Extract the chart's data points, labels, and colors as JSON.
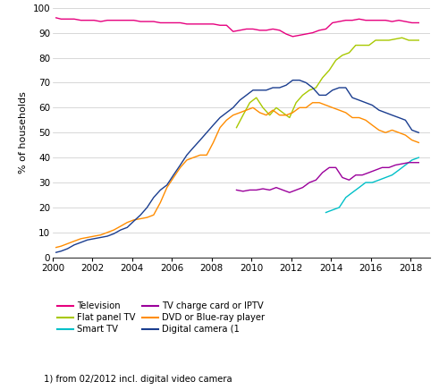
{
  "ylabel": "% of households",
  "footnote": "1) from 02/2012 incl. digital video camera",
  "ylim": [
    0,
    100
  ],
  "xlim": [
    2000,
    2019.0
  ],
  "xticks": [
    2000,
    2002,
    2004,
    2006,
    2008,
    2010,
    2012,
    2014,
    2016,
    2018
  ],
  "yticks": [
    0,
    10,
    20,
    30,
    40,
    50,
    60,
    70,
    80,
    90,
    100
  ],
  "colors": {
    "Television": "#e6007e",
    "Flat panel TV": "#a8c800",
    "Smart TV": "#00c0c8",
    "TV charge card or IPTV": "#9b009b",
    "DVD or Blue-ray player": "#ff8c00",
    "Digital camera (1": "#1a3d8f"
  },
  "legend_order": [
    "Television",
    "Flat panel TV",
    "Smart TV",
    "TV charge card or IPTV",
    "DVD or Blue-ray player",
    "Digital camera (1"
  ],
  "series": {
    "Television": {
      "x": [
        2000.17,
        2000.42,
        2000.75,
        2001.08,
        2001.42,
        2001.75,
        2002.08,
        2002.42,
        2002.75,
        2003.08,
        2003.42,
        2003.75,
        2004.08,
        2004.42,
        2004.75,
        2005.08,
        2005.42,
        2005.75,
        2006.08,
        2006.42,
        2006.75,
        2007.08,
        2007.42,
        2007.75,
        2008.08,
        2008.42,
        2008.75,
        2009.08,
        2009.42,
        2009.75,
        2010.08,
        2010.42,
        2010.75,
        2011.08,
        2011.42,
        2011.75,
        2012.08,
        2012.42,
        2012.75,
        2013.08,
        2013.42,
        2013.75,
        2014.08,
        2014.42,
        2014.75,
        2015.08,
        2015.42,
        2015.75,
        2016.08,
        2016.42,
        2016.75,
        2017.08,
        2017.42,
        2017.75,
        2018.08,
        2018.42
      ],
      "y": [
        96,
        95.5,
        95.5,
        95.5,
        95,
        95,
        95,
        94.5,
        95,
        95,
        95,
        95,
        95,
        94.5,
        94.5,
        94.5,
        94,
        94,
        94,
        94,
        93.5,
        93.5,
        93.5,
        93.5,
        93.5,
        93,
        93,
        90.5,
        91,
        91.5,
        91.5,
        91,
        91,
        91.5,
        91,
        89.5,
        88.5,
        89,
        89.5,
        90,
        91,
        91.5,
        94,
        94.5,
        95,
        95,
        95.5,
        95,
        95,
        95,
        95,
        94.5,
        95,
        94.5,
        94,
        94
      ]
    },
    "Flat panel TV": {
      "x": [
        2009.25,
        2009.58,
        2009.92,
        2010.25,
        2010.58,
        2010.92,
        2011.25,
        2011.58,
        2011.92,
        2012.25,
        2012.58,
        2012.92,
        2013.25,
        2013.58,
        2013.92,
        2014.25,
        2014.58,
        2014.92,
        2015.25,
        2015.58,
        2015.92,
        2016.25,
        2016.58,
        2016.92,
        2017.25,
        2017.58,
        2017.92,
        2018.25,
        2018.42
      ],
      "y": [
        52,
        57,
        62,
        64,
        60,
        57,
        60,
        58,
        56,
        62,
        65,
        67,
        68,
        72,
        75,
        79,
        81,
        82,
        85,
        85,
        85,
        87,
        87,
        87,
        87.5,
        88,
        87,
        87,
        87
      ]
    },
    "Smart TV": {
      "x": [
        2013.75,
        2014.08,
        2014.42,
        2014.75,
        2015.08,
        2015.42,
        2015.75,
        2016.08,
        2016.42,
        2016.75,
        2017.08,
        2017.42,
        2017.75,
        2018.08,
        2018.42
      ],
      "y": [
        18,
        19,
        20,
        24,
        26,
        28,
        30,
        30,
        31,
        32,
        33,
        35,
        37,
        39,
        40
      ]
    },
    "TV charge card or IPTV": {
      "x": [
        2009.25,
        2009.58,
        2009.92,
        2010.25,
        2010.58,
        2010.92,
        2011.25,
        2011.58,
        2011.92,
        2012.25,
        2012.58,
        2012.92,
        2013.25,
        2013.58,
        2013.92,
        2014.25,
        2014.58,
        2014.92,
        2015.25,
        2015.58,
        2015.92,
        2016.25,
        2016.58,
        2016.92,
        2017.25,
        2017.58,
        2017.92,
        2018.25,
        2018.42
      ],
      "y": [
        27,
        26.5,
        27,
        27,
        27.5,
        27,
        28,
        27,
        26,
        27,
        28,
        30,
        31,
        34,
        36,
        36,
        32,
        31,
        33,
        33,
        34,
        35,
        36,
        36,
        37,
        37.5,
        38,
        38,
        38
      ]
    },
    "DVD or Blue-ray player": {
      "x": [
        2000.17,
        2000.42,
        2000.75,
        2001.08,
        2001.42,
        2001.75,
        2002.08,
        2002.42,
        2002.75,
        2003.08,
        2003.42,
        2003.75,
        2004.08,
        2004.42,
        2004.75,
        2005.08,
        2005.42,
        2005.75,
        2006.08,
        2006.42,
        2006.75,
        2007.08,
        2007.42,
        2007.75,
        2008.08,
        2008.42,
        2008.75,
        2009.08,
        2009.42,
        2009.75,
        2010.08,
        2010.42,
        2010.75,
        2011.08,
        2011.42,
        2011.75,
        2012.08,
        2012.42,
        2012.75,
        2013.08,
        2013.42,
        2013.75,
        2014.08,
        2014.42,
        2014.75,
        2015.08,
        2015.42,
        2015.75,
        2016.08,
        2016.42,
        2016.75,
        2017.08,
        2017.42,
        2017.75,
        2018.08,
        2018.42
      ],
      "y": [
        4,
        4.5,
        5.5,
        6.5,
        7.5,
        8,
        8.5,
        9,
        10,
        11,
        12.5,
        14,
        15,
        15.5,
        16,
        17,
        22,
        28,
        32,
        36,
        39,
        40,
        41,
        41,
        46,
        52,
        55,
        57,
        58,
        59,
        60,
        58,
        57,
        59,
        57,
        57,
        58,
        60,
        60,
        62,
        62,
        61,
        60,
        59,
        58,
        56,
        56,
        55,
        53,
        51,
        50,
        51,
        50,
        49,
        47,
        46
      ]
    },
    "Digital camera (1": {
      "x": [
        2000.17,
        2000.42,
        2000.75,
        2001.08,
        2001.42,
        2001.75,
        2002.08,
        2002.42,
        2002.75,
        2003.08,
        2003.42,
        2003.75,
        2004.08,
        2004.42,
        2004.75,
        2005.08,
        2005.42,
        2005.75,
        2006.08,
        2006.42,
        2006.75,
        2007.08,
        2007.42,
        2007.75,
        2008.08,
        2008.42,
        2008.75,
        2009.08,
        2009.42,
        2009.75,
        2010.08,
        2010.42,
        2010.75,
        2011.08,
        2011.42,
        2011.75,
        2012.08,
        2012.42,
        2012.75,
        2013.08,
        2013.42,
        2013.75,
        2014.08,
        2014.42,
        2014.75,
        2015.08,
        2015.42,
        2015.75,
        2016.08,
        2016.42,
        2016.75,
        2017.08,
        2017.42,
        2017.75,
        2018.08,
        2018.42
      ],
      "y": [
        2,
        2.5,
        3.5,
        5,
        6,
        7,
        7.5,
        8,
        8.5,
        9.5,
        11,
        12,
        14.5,
        17,
        20,
        24,
        27,
        29,
        33,
        37,
        41,
        44,
        47,
        50,
        53,
        56,
        58,
        60,
        63,
        65,
        67,
        67,
        67,
        68,
        68,
        69,
        71,
        71,
        70,
        68,
        65,
        65,
        67,
        68,
        68,
        64,
        63,
        62,
        61,
        59,
        58,
        57,
        56,
        55,
        51,
        50
      ]
    }
  }
}
